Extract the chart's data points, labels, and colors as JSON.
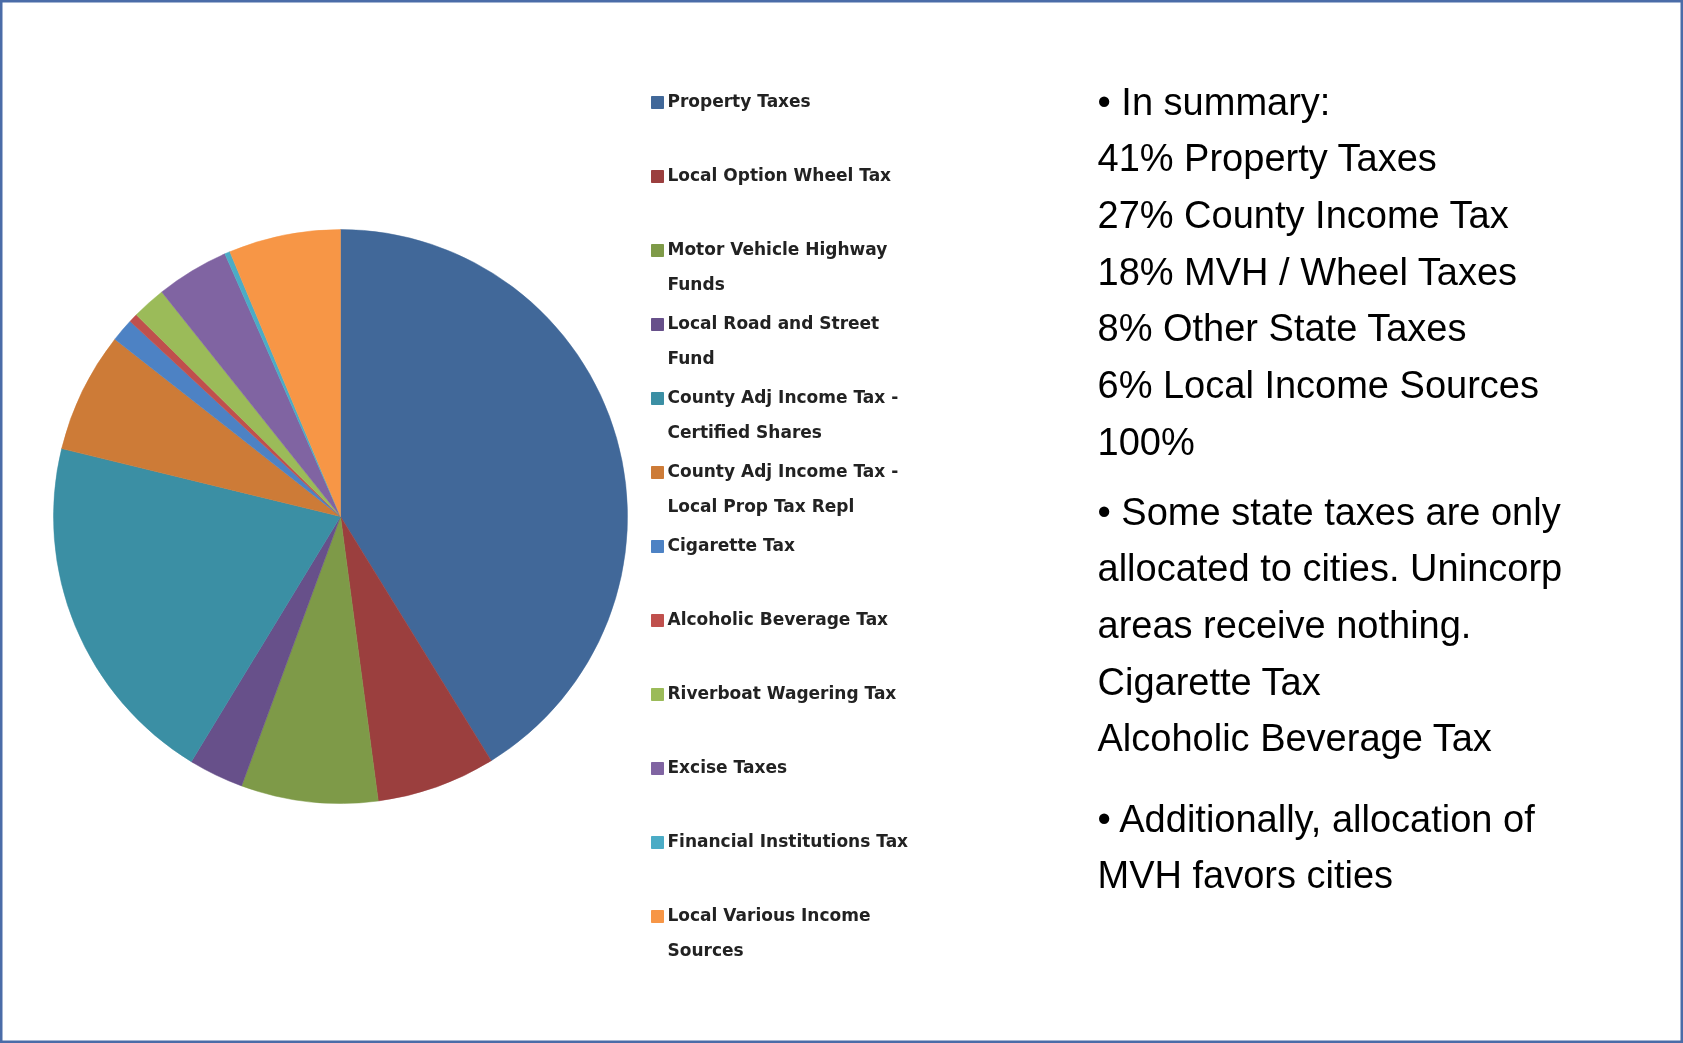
{
  "chart_data": {
    "type": "pie",
    "categories": [
      "Property Taxes",
      "Local Option Wheel Tax",
      "Motor Vehicle Highway\nFunds",
      "Local Road and Street\nFund",
      "County Adj Income Tax -\nCertified Shares",
      "County Adj Income Tax -\nLocal Prop Tax Repl",
      "Cigarette Tax",
      "Alcoholic Beverage Tax",
      "Riverboat Wagering Tax",
      "Excise Taxes",
      "Financial Institutions Tax",
      "Local Various Income\nSources"
    ],
    "values": [
      41.2,
      6.7,
      7.7,
      3.1,
      20.1,
      6.8,
      1.3,
      0.5,
      1.9,
      4.1,
      0.3,
      6.3
    ],
    "colors": [
      "#416899",
      "#9b3f3e",
      "#7e9a48",
      "#67508a",
      "#3b8fa4",
      "#cd7b37",
      "#4d82c4",
      "#c0504d",
      "#9bbb59",
      "#8064a2",
      "#4bacc6",
      "#f79646"
    ],
    "legend": "right",
    "annotations": [
      "•  In summary:\n41% Property Taxes\n27% County Income Tax\n18% MVH / Wheel Taxes\n  8% Other State Taxes\n  6% Local Income Sources\n100%",
      "•  Some state taxes are only\nallocated to cities. Unincorp\nareas receive nothing.\n    Cigarette Tax\n    Alcoholic Beverage Tax",
      "•  Additionally, allocation of\nMVH favors cities"
    ]
  }
}
